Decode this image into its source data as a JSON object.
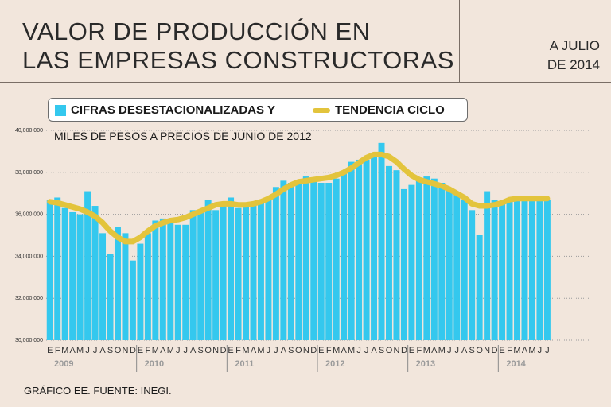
{
  "header": {
    "title_line1": "VALOR DE  PRODUCCIÓN EN",
    "title_line2": "LAS EMPRESAS CONSTRUCTORAS",
    "date_line1": "A JULIO",
    "date_line2": "DE 2014"
  },
  "legend": {
    "bars_label": "CIFRAS DESESTACIONALIZADAS Y",
    "line_label": "TENDENCIA CICLO"
  },
  "subtitle": "MILES DE PESOS A PRECIOS DE JUNIO DE 2012",
  "footer": "GRÁFICO EE. FUENTE: INEGI.",
  "colors": {
    "bars": "#34c8ee",
    "trend": "#e3c43c",
    "background": "#f2e6dc"
  },
  "chart_data": {
    "type": "bar",
    "ylim": [
      30000000,
      40000000
    ],
    "yticks": [
      "30,000,000",
      "32,000,000",
      "34,000,000",
      "36,000,000",
      "38,000,000",
      "40,000,000"
    ],
    "month_labels": [
      "E",
      "F",
      "M",
      "A",
      "M",
      "J",
      "J",
      "A",
      "S",
      "O",
      "N",
      "D"
    ],
    "years": [
      "2009",
      "2010",
      "2011",
      "2012",
      "2013",
      "2014"
    ],
    "series": [
      {
        "name": "Cifras desestacionalizadas",
        "kind": "bar",
        "values": [
          36700000,
          36800000,
          36300000,
          36100000,
          36000000,
          37100000,
          36400000,
          35100000,
          34100000,
          35400000,
          35100000,
          33800000,
          34600000,
          35100000,
          35700000,
          35800000,
          35800000,
          35500000,
          35500000,
          36200000,
          36100000,
          36700000,
          36200000,
          36500000,
          36800000,
          36300000,
          36400000,
          36400000,
          36700000,
          36800000,
          37300000,
          37600000,
          37500000,
          37500000,
          37800000,
          37600000,
          37500000,
          37500000,
          37700000,
          38000000,
          38500000,
          38600000,
          38600000,
          38800000,
          39400000,
          38300000,
          38100000,
          37200000,
          37400000,
          37600000,
          37800000,
          37700000,
          37500000,
          37200000,
          37000000,
          36700000,
          36200000,
          35000000,
          37100000,
          36700000,
          36600000,
          36700000,
          36700000,
          36700000,
          36700000,
          36700000,
          36700000
        ]
      },
      {
        "name": "Tendencia ciclo",
        "kind": "line",
        "values": [
          36600000,
          36550000,
          36450000,
          36350000,
          36250000,
          36100000,
          35900000,
          35600000,
          35200000,
          34900000,
          34700000,
          34700000,
          34900000,
          35200000,
          35450000,
          35600000,
          35700000,
          35750000,
          35850000,
          36000000,
          36150000,
          36300000,
          36450000,
          36500000,
          36500000,
          36450000,
          36450000,
          36500000,
          36600000,
          36750000,
          36950000,
          37200000,
          37400000,
          37550000,
          37600000,
          37650000,
          37700000,
          37750000,
          37850000,
          38000000,
          38200000,
          38450000,
          38700000,
          38850000,
          38850000,
          38750000,
          38500000,
          38150000,
          37850000,
          37650000,
          37550000,
          37450000,
          37350000,
          37200000,
          37000000,
          36800000,
          36500000,
          36400000,
          36400000,
          36450000,
          36550000,
          36700000,
          36750000,
          36750000,
          36750000,
          36750000,
          36750000
        ]
      }
    ]
  }
}
